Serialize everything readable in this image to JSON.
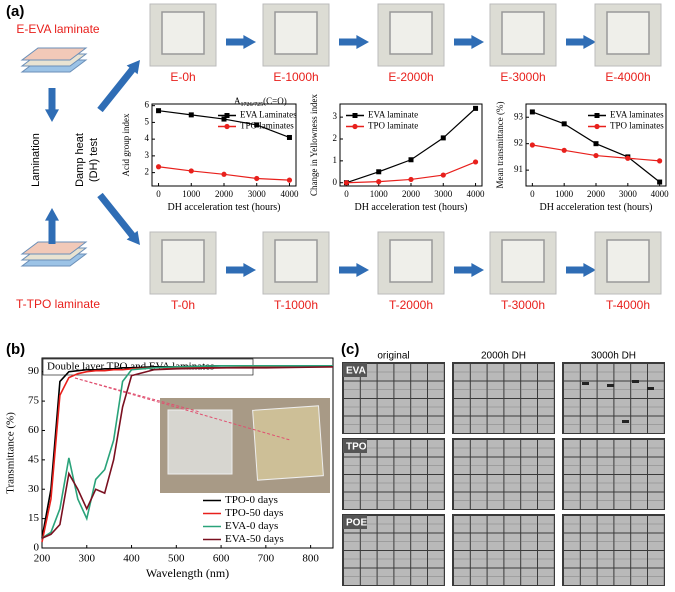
{
  "panel_labels": [
    "(a)",
    "(b)",
    "(c)"
  ],
  "panel_a": {
    "eva_laminate": "E-EVA laminate",
    "tpo_laminate": "T-TPO laminate",
    "lamination": "Lamination",
    "damp_heat": [
      "Damp heat",
      "(DH) test"
    ],
    "eva_photos": [
      "E-0h",
      "E-1000h",
      "E-2000h",
      "E-3000h",
      "E-4000h"
    ],
    "tpo_photos": [
      "T-0h",
      "T-1000h",
      "T-2000h",
      "T-3000h",
      "T-4000h"
    ]
  },
  "panel_c": {
    "columns": [
      "original",
      "2000h DH",
      "3000h DH"
    ],
    "rows": [
      "EVA",
      "TPO",
      "POE"
    ]
  },
  "chart_data": [
    {
      "type": "line",
      "ylabel": "Acid group index",
      "xlabel": "DH acceleration test (hours)",
      "annotation": "A",
      "annotation_subscript": "1726/725",
      "annotation_suffix": "(C=O)",
      "x": [
        0,
        1000,
        2000,
        3000,
        4000
      ],
      "xlim": [
        -200,
        4200
      ],
      "xticks": [
        0,
        1000,
        2000,
        3000,
        4000
      ],
      "ylim": [
        1.2,
        6.1
      ],
      "yticks": [
        2,
        3,
        4,
        5,
        6
      ],
      "legend": "upper right",
      "series": [
        {
          "name": "EVA Laminates",
          "color": "#000000",
          "marker": "square",
          "values": [
            5.7,
            5.45,
            5.2,
            4.85,
            4.1
          ]
        },
        {
          "name": "TPO laminates",
          "color": "#e8201c",
          "marker": "circle",
          "values": [
            2.35,
            2.1,
            1.9,
            1.65,
            1.55
          ]
        }
      ]
    },
    {
      "type": "line",
      "ylabel": "Change in Yellowness index",
      "xlabel": "DH acceleration test (hours)",
      "x": [
        0,
        1000,
        2000,
        3000,
        4000
      ],
      "xlim": [
        -200,
        4200
      ],
      "xticks": [
        0,
        1000,
        2000,
        3000,
        4000
      ],
      "ylim": [
        -0.15,
        3.6
      ],
      "yticks": [
        0,
        1,
        2,
        3
      ],
      "legend": "upper left",
      "series": [
        {
          "name": "EVA laminate",
          "color": "#000000",
          "marker": "square",
          "values": [
            0,
            0.5,
            1.05,
            2.05,
            3.4
          ]
        },
        {
          "name": "TPO laminate",
          "color": "#e8201c",
          "marker": "circle",
          "values": [
            0,
            0.05,
            0.15,
            0.35,
            0.95
          ]
        }
      ]
    },
    {
      "type": "line",
      "ylabel": "Mean transmittance (%)",
      "xlabel": "DH acceleration test (hours)",
      "x": [
        0,
        1000,
        2000,
        3000,
        4000
      ],
      "xlim": [
        -200,
        4200
      ],
      "xticks": [
        0,
        1000,
        2000,
        3000,
        4000
      ],
      "ylim": [
        90.4,
        93.5
      ],
      "yticks": [
        91,
        92,
        93
      ],
      "legend": "upper right",
      "series": [
        {
          "name": "EVA laminates",
          "color": "#000000",
          "marker": "square",
          "values": [
            93.2,
            92.75,
            92.0,
            91.5,
            90.55
          ]
        },
        {
          "name": "TPO laminates",
          "color": "#e8201c",
          "marker": "circle",
          "values": [
            91.95,
            91.75,
            91.55,
            91.45,
            91.35
          ]
        }
      ]
    },
    {
      "type": "line",
      "title": "Double layer TPO and EVA laminates",
      "ylabel": "Transmittance (%)",
      "xlabel": "Wavelength (nm)",
      "x": [
        200,
        220,
        240,
        260,
        280,
        300,
        320,
        340,
        360,
        380,
        400,
        450,
        500,
        600,
        700,
        850
      ],
      "xlim": [
        200,
        850
      ],
      "xticks": [
        200,
        300,
        400,
        500,
        600,
        700,
        800
      ],
      "ylim": [
        0,
        97
      ],
      "yticks": [
        0,
        15,
        30,
        45,
        60,
        75,
        90
      ],
      "legend": "lower right",
      "series": [
        {
          "name": "TPO-0   days",
          "color": "#000000",
          "values": [
            5,
            30,
            85,
            90,
            90.5,
            91,
            91,
            91.5,
            91.5,
            92,
            92,
            92.5,
            92.5,
            93,
            93,
            93
          ]
        },
        {
          "name": "TPO-50 days",
          "color": "#e8201c",
          "values": [
            3,
            25,
            78,
            87,
            89,
            90,
            90.5,
            90.5,
            91,
            91,
            91.5,
            92,
            92,
            92,
            92.5,
            92.5
          ]
        },
        {
          "name": "EVA-0   days",
          "color": "#2aa37a",
          "values": [
            5,
            8,
            20,
            46,
            25,
            15,
            35,
            40,
            55,
            85,
            91,
            92,
            92.5,
            93,
            93,
            93
          ]
        },
        {
          "name": "EVA-50 days",
          "color": "#7a1020",
          "values": [
            5,
            7,
            12,
            38,
            30,
            20,
            30,
            28,
            45,
            72,
            88,
            91,
            91.5,
            92,
            92,
            92.5
          ]
        }
      ]
    }
  ]
}
